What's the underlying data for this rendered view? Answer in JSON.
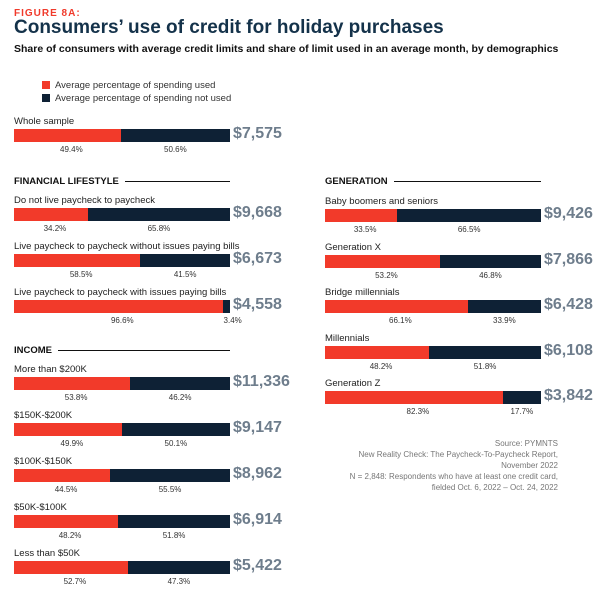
{
  "figure_label": "FIGURE 8A:",
  "title": "Consumers’ use of credit for holiday purchases",
  "subtitle": "Share of consumers with average credit limits and share of limit used in an average month, by demographics",
  "legend": [
    {
      "label": "Average percentage of spending used",
      "color": "#f23a2a"
    },
    {
      "label": "Average percentage of spending not used",
      "color": "#0e2135"
    }
  ],
  "source": {
    "line1": "Source: PYMNTS",
    "line2": "New Reality Check: The Paycheck-To-Paycheck Report,",
    "line3": "November 2022",
    "line4": "N = 2,848: Respondents who have at least one credit card,",
    "line5": "fielded Oct. 6, 2022 – Oct. 24, 2022"
  },
  "chart_data": {
    "type": "bar",
    "stacked": true,
    "series": [
      "Average percentage of spending used",
      "Average percentage of spending not used"
    ],
    "groups": [
      {
        "name": "",
        "rows": [
          {
            "label": "Whole sample",
            "used": 49.4,
            "not_used": 50.6,
            "used_label": "49.4%",
            "not_used_label": "50.6%",
            "value": "$7,575"
          }
        ]
      },
      {
        "name": "FINANCIAL LIFESTYLE",
        "rows": [
          {
            "label": "Do not live paycheck to paycheck",
            "used": 34.2,
            "not_used": 65.8,
            "used_label": "34.2%",
            "not_used_label": "65.8%",
            "value": "$9,668"
          },
          {
            "label": "Live paycheck to paycheck without issues paying bills",
            "used": 58.5,
            "not_used": 41.5,
            "used_label": "58.5%",
            "not_used_label": "41.5%",
            "value": "$6,673"
          },
          {
            "label": "Live paycheck to paycheck with issues paying bills",
            "used": 96.6,
            "not_used": 3.4,
            "used_label": "96.6%",
            "not_used_label": "3.4%",
            "value": "$4,558"
          }
        ]
      },
      {
        "name": "INCOME",
        "rows": [
          {
            "label": "More than $200K",
            "used": 53.8,
            "not_used": 46.2,
            "used_label": "53.8%",
            "not_used_label": "46.2%",
            "value": "$11,336"
          },
          {
            "label": "$150K-$200K",
            "used": 49.9,
            "not_used": 50.1,
            "used_label": "49.9%",
            "not_used_label": "50.1%",
            "value": "$9,147"
          },
          {
            "label": "$100K-$150K",
            "used": 44.5,
            "not_used": 55.5,
            "used_label": "44.5%",
            "not_used_label": "55.5%",
            "value": "$8,962"
          },
          {
            "label": "$50K-$100K",
            "used": 48.2,
            "not_used": 51.8,
            "used_label": "48.2%",
            "not_used_label": "51.8%",
            "value": "$6,914"
          },
          {
            "label": "Less than $50K",
            "used": 52.7,
            "not_used": 47.3,
            "used_label": "52.7%",
            "not_used_label": "47.3%",
            "value": "$5,422"
          }
        ]
      },
      {
        "name": "GENERATION",
        "rows": [
          {
            "label": "Baby boomers and seniors",
            "used": 33.5,
            "not_used": 66.5,
            "used_label": "33.5%",
            "not_used_label": "66.5%",
            "value": "$9,426"
          },
          {
            "label": "Generation X",
            "used": 53.2,
            "not_used": 46.8,
            "used_label": "53.2%",
            "not_used_label": "46.8%",
            "value": "$7,866"
          },
          {
            "label": "Bridge millennials",
            "used": 66.1,
            "not_used": 33.9,
            "used_label": "66.1%",
            "not_used_label": "33.9%",
            "value": "$6,428"
          },
          {
            "label": "Millennials",
            "used": 48.2,
            "not_used": 51.8,
            "used_label": "48.2%",
            "not_used_label": "51.8%",
            "value": "$6,108"
          },
          {
            "label": "Generation Z",
            "used": 82.3,
            "not_used": 17.7,
            "used_label": "82.3%",
            "not_used_label": "17.7%",
            "value": "$3,842"
          }
        ]
      }
    ]
  }
}
